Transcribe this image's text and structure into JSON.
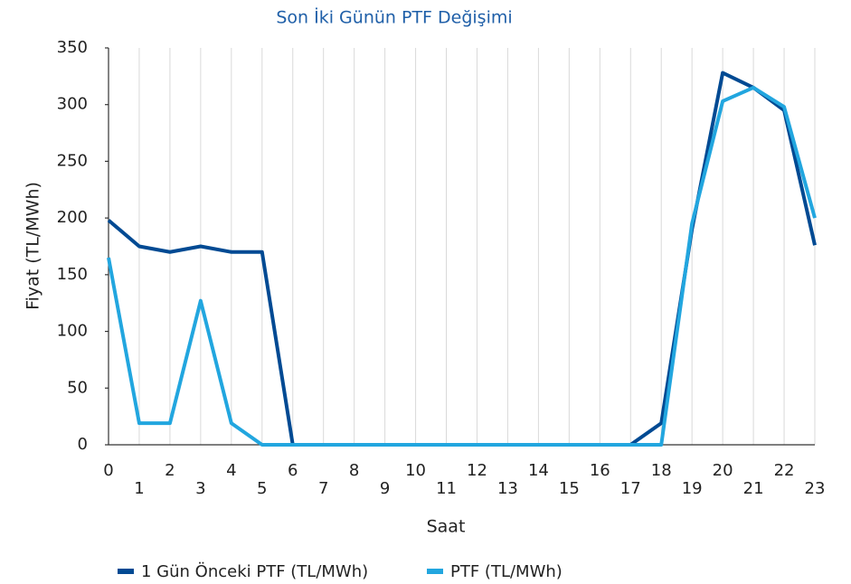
{
  "chart_data": {
    "type": "line",
    "title": "Son İki Günün PTF Değişimi",
    "x_label": "Saat",
    "y_label": "Fiyat (TL/MWh)",
    "x": [
      0,
      1,
      2,
      3,
      4,
      5,
      6,
      7,
      8,
      9,
      10,
      11,
      12,
      13,
      14,
      15,
      16,
      17,
      18,
      19,
      20,
      21,
      22,
      23
    ],
    "xlim": [
      0,
      23
    ],
    "xticks": [
      0,
      1,
      2,
      3,
      4,
      5,
      6,
      7,
      8,
      9,
      10,
      11,
      12,
      13,
      14,
      15,
      16,
      17,
      18,
      19,
      20,
      21,
      22,
      23
    ],
    "ylim": [
      0,
      350
    ],
    "yticks": [
      0,
      50,
      100,
      150,
      200,
      250,
      300,
      350
    ],
    "grid": "x",
    "legend": "bottom",
    "series": [
      {
        "name": "1 Gün Önceki PTF (TL/MWh)",
        "color": "#004a93",
        "values": [
          198,
          175,
          170,
          175,
          170,
          170,
          0,
          0,
          0,
          0,
          0,
          0,
          0,
          0,
          0,
          0,
          0,
          0,
          19,
          190,
          328,
          315,
          295,
          176
        ]
      },
      {
        "name": "PTF (TL/MWh)",
        "color": "#22a6df",
        "values": [
          165,
          19,
          19,
          127,
          19,
          0,
          0,
          0,
          0,
          0,
          0,
          0,
          0,
          0,
          0,
          0,
          0,
          0,
          0,
          195,
          303,
          315,
          298,
          200
        ]
      }
    ]
  }
}
